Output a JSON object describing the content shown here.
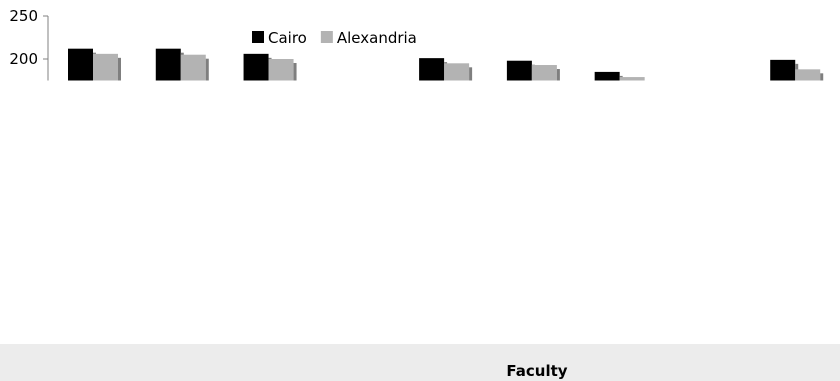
{
  "chart_data": {
    "type": "bar",
    "title": "",
    "xlabel": "Faculty",
    "ylabel": "",
    "ylim": [
      175,
      250
    ],
    "yticks": [
      200,
      250
    ],
    "grid": false,
    "legend_position": "top-center",
    "categories": [
      "",
      "",
      "",
      "",
      "",
      "",
      "",
      "",
      ""
    ],
    "series": [
      {
        "name": "Cairo",
        "color": "#000000",
        "values": [
          212,
          212,
          206,
          null,
          201,
          198,
          185,
          null,
          199
        ]
      },
      {
        "name": "Alexandria",
        "color": "#b3b3b3",
        "values": [
          206,
          205,
          200,
          null,
          195,
          193,
          179,
          null,
          188
        ]
      }
    ]
  }
}
